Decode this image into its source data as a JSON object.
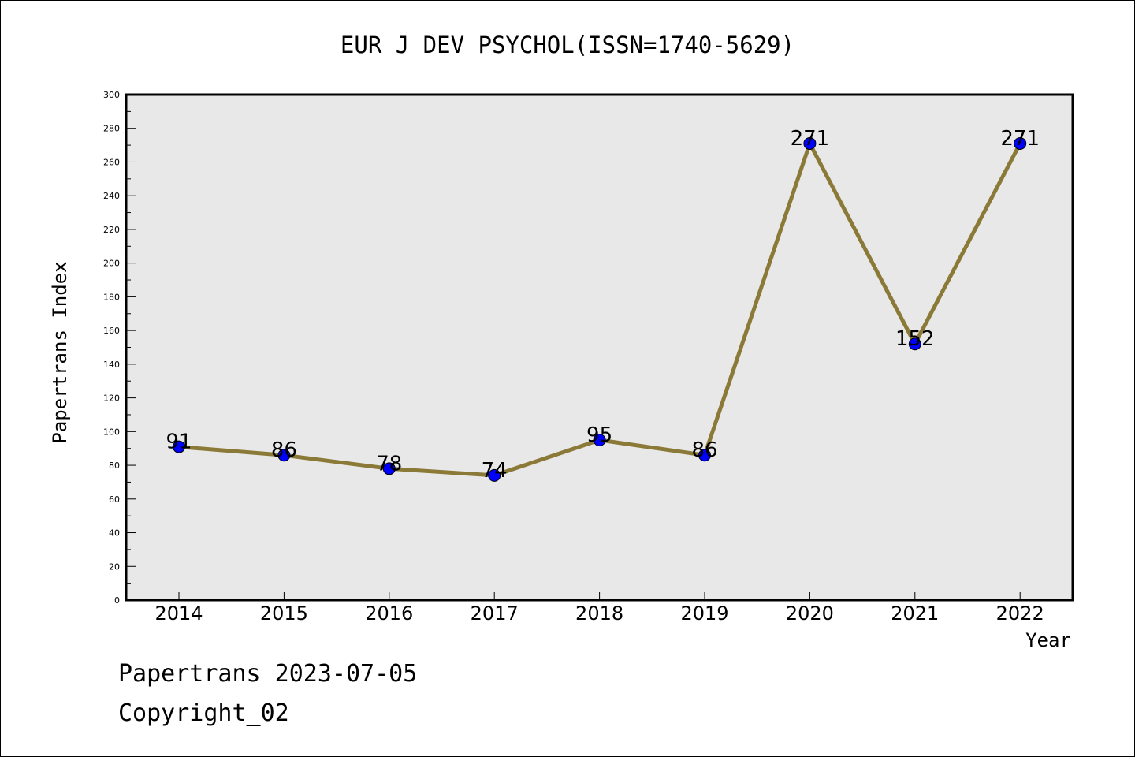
{
  "chart_data": {
    "type": "line",
    "title": "EUR J DEV PSYCHOL(ISSN=1740-5629)",
    "xlabel": "Year",
    "ylabel": "Papertrans Index",
    "x": [
      "2014",
      "2015",
      "2016",
      "2017",
      "2018",
      "2019",
      "2020",
      "2021",
      "2022"
    ],
    "series": [
      {
        "values": [
          91,
          86,
          78,
          74,
          95,
          86,
          271,
          152,
          271
        ]
      }
    ],
    "data_labels": [
      "91",
      "86",
      "78",
      "74",
      "95",
      "86",
      "271",
      "152",
      "271"
    ],
    "ylim": [
      0,
      300
    ],
    "yticks": [
      "0",
      "20",
      "40",
      "60",
      "80",
      "100",
      "120",
      "140",
      "160",
      "180",
      "200",
      "220",
      "240",
      "260",
      "280",
      "300"
    ],
    "grid": false,
    "legend": "none",
    "colors": {
      "line": "#8b7a37",
      "marker": "#0000ff",
      "plot_background": "#e8e8e8"
    }
  },
  "footer": {
    "line1": "Papertrans 2023-07-05",
    "line2": "Copyright_02"
  }
}
